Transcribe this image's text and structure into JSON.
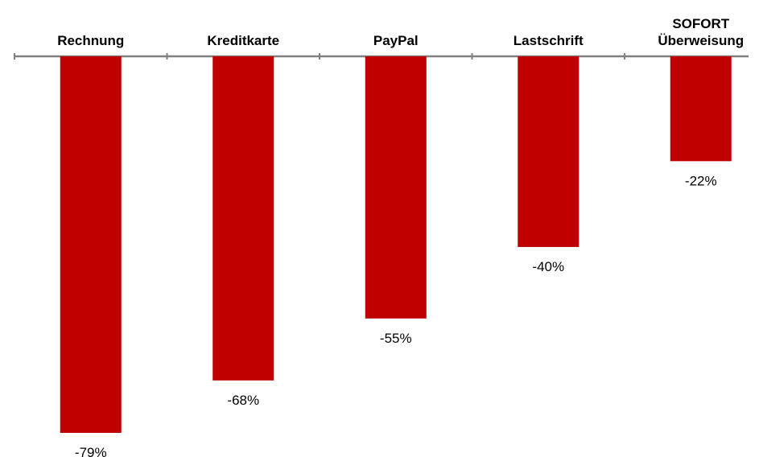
{
  "chart_data": {
    "type": "bar",
    "orientation": "vertical",
    "categories": [
      [
        "Rechnung"
      ],
      [
        "Kreditkarte"
      ],
      [
        "PayPal"
      ],
      [
        "Lastschrift"
      ],
      [
        "SOFORT",
        "Überweisung"
      ]
    ],
    "values": [
      -79,
      -68,
      -55,
      -40,
      -22
    ],
    "value_labels": [
      "-79%",
      "-68%",
      "-55%",
      "-40%",
      "-22%"
    ],
    "title": "",
    "xlabel": "",
    "ylabel": "",
    "ylim": [
      -80,
      0
    ],
    "category_axis_position": "top",
    "grid": false,
    "legend": "none",
    "colors": {
      "bar": "#C00000",
      "axis": "#808080",
      "text": "#000000"
    }
  }
}
